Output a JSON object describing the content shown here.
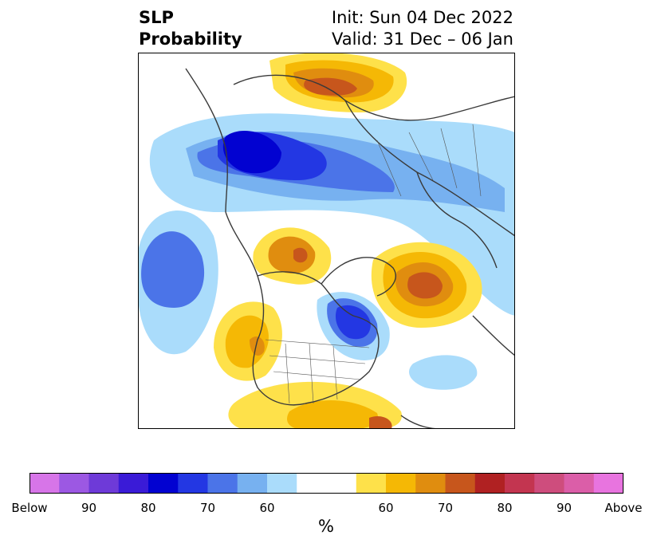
{
  "title": {
    "left_lines": [
      "SLP",
      "Probability"
    ],
    "right_lines": [
      "Init: Sun 04 Dec 2022",
      "Valid: 31 Dec – 06 Jan"
    ]
  },
  "map": {
    "projection": "polar-stereographic",
    "region": "Northern Hemisphere (North America, Arctic, Europe, Asia)",
    "field": "SLP probability"
  },
  "colorbar": {
    "unit": "%",
    "colors": [
      "#d775e8",
      "#9c58e3",
      "#6e3ad8",
      "#3a1bd7",
      "#0202d1",
      "#2337e3",
      "#4b74e8",
      "#77b1f0",
      "#aadcfb",
      "#ffffff",
      "#ffffff",
      "#fee14a",
      "#f5b805",
      "#e08d0f",
      "#c7561c",
      "#b02122",
      "#c33550",
      "#ce4d7d",
      "#db5ea8",
      "#e874df"
    ],
    "tick_labels": [
      "Below",
      "90",
      "80",
      "70",
      "60",
      "60",
      "70",
      "80",
      "90",
      "Above"
    ]
  }
}
